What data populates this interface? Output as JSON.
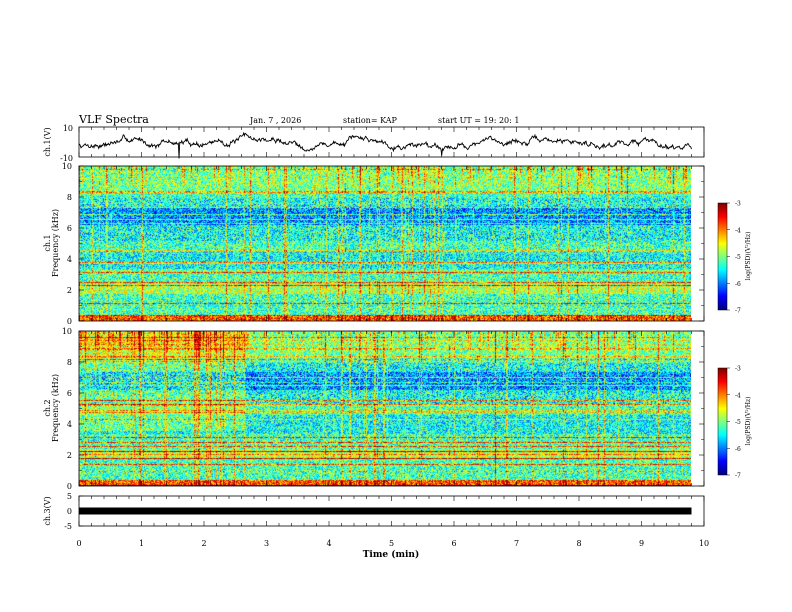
{
  "header": {
    "title": "VLF Spectra",
    "date": "Jan. 7 , 2026",
    "station": "station= KAP",
    "start_ut": "start UT = 19: 20: 1"
  },
  "chart_data": [
    {
      "type": "line",
      "panel": "ch1_amplitude",
      "ylabel": "ch.1(V)",
      "ylim": [
        -10,
        10
      ],
      "yticks": [
        "10",
        "-10"
      ],
      "xlim": [
        0,
        10
      ],
      "x_max_data": 9.8,
      "color": "#000000",
      "noise_seed": 7
    },
    {
      "type": "heatmap",
      "panel": "ch1_spectrogram",
      "ylabel_top": "ch.1",
      "ylabel": "Frequency (kHz)",
      "ylim": [
        0,
        10
      ],
      "yticks": [
        "10",
        "8",
        "6",
        "4",
        "2",
        "0"
      ],
      "xlim": [
        0,
        9.8
      ],
      "colorbar": {
        "label": "log(PSD)(V²/Hz)",
        "range": [
          -7,
          -3
        ],
        "ticks": [
          "-3",
          "-4",
          "-5",
          "-6",
          "-7"
        ]
      },
      "seed": 11
    },
    {
      "type": "heatmap",
      "panel": "ch2_spectrogram",
      "ylabel_top": "ch.2",
      "ylabel": "Frequency (kHz)",
      "ylim": [
        0,
        10
      ],
      "yticks": [
        "10",
        "8",
        "6",
        "4",
        "2",
        "0"
      ],
      "xlim": [
        0,
        9.8
      ],
      "colorbar": {
        "label": "log(PSD)(V²/Hz)",
        "range": [
          -7,
          -3
        ],
        "ticks": [
          "-3",
          "-4",
          "-5",
          "-6",
          "-7"
        ]
      },
      "seed": 23
    },
    {
      "type": "line",
      "panel": "ch3_amplitude",
      "ylabel": "ch.3(V)",
      "ylim": [
        -5,
        5
      ],
      "yticks": [
        "5",
        "0",
        "-5"
      ],
      "xlim": [
        0,
        10
      ],
      "x_max_data": 9.8,
      "value_band": [
        -0.5,
        0.5
      ],
      "color": "#000000"
    }
  ],
  "x_axis": {
    "label": "Time (min)",
    "ticks": [
      "0",
      "1",
      "2",
      "3",
      "4",
      "5",
      "6",
      "7",
      "8",
      "9",
      "10"
    ]
  }
}
